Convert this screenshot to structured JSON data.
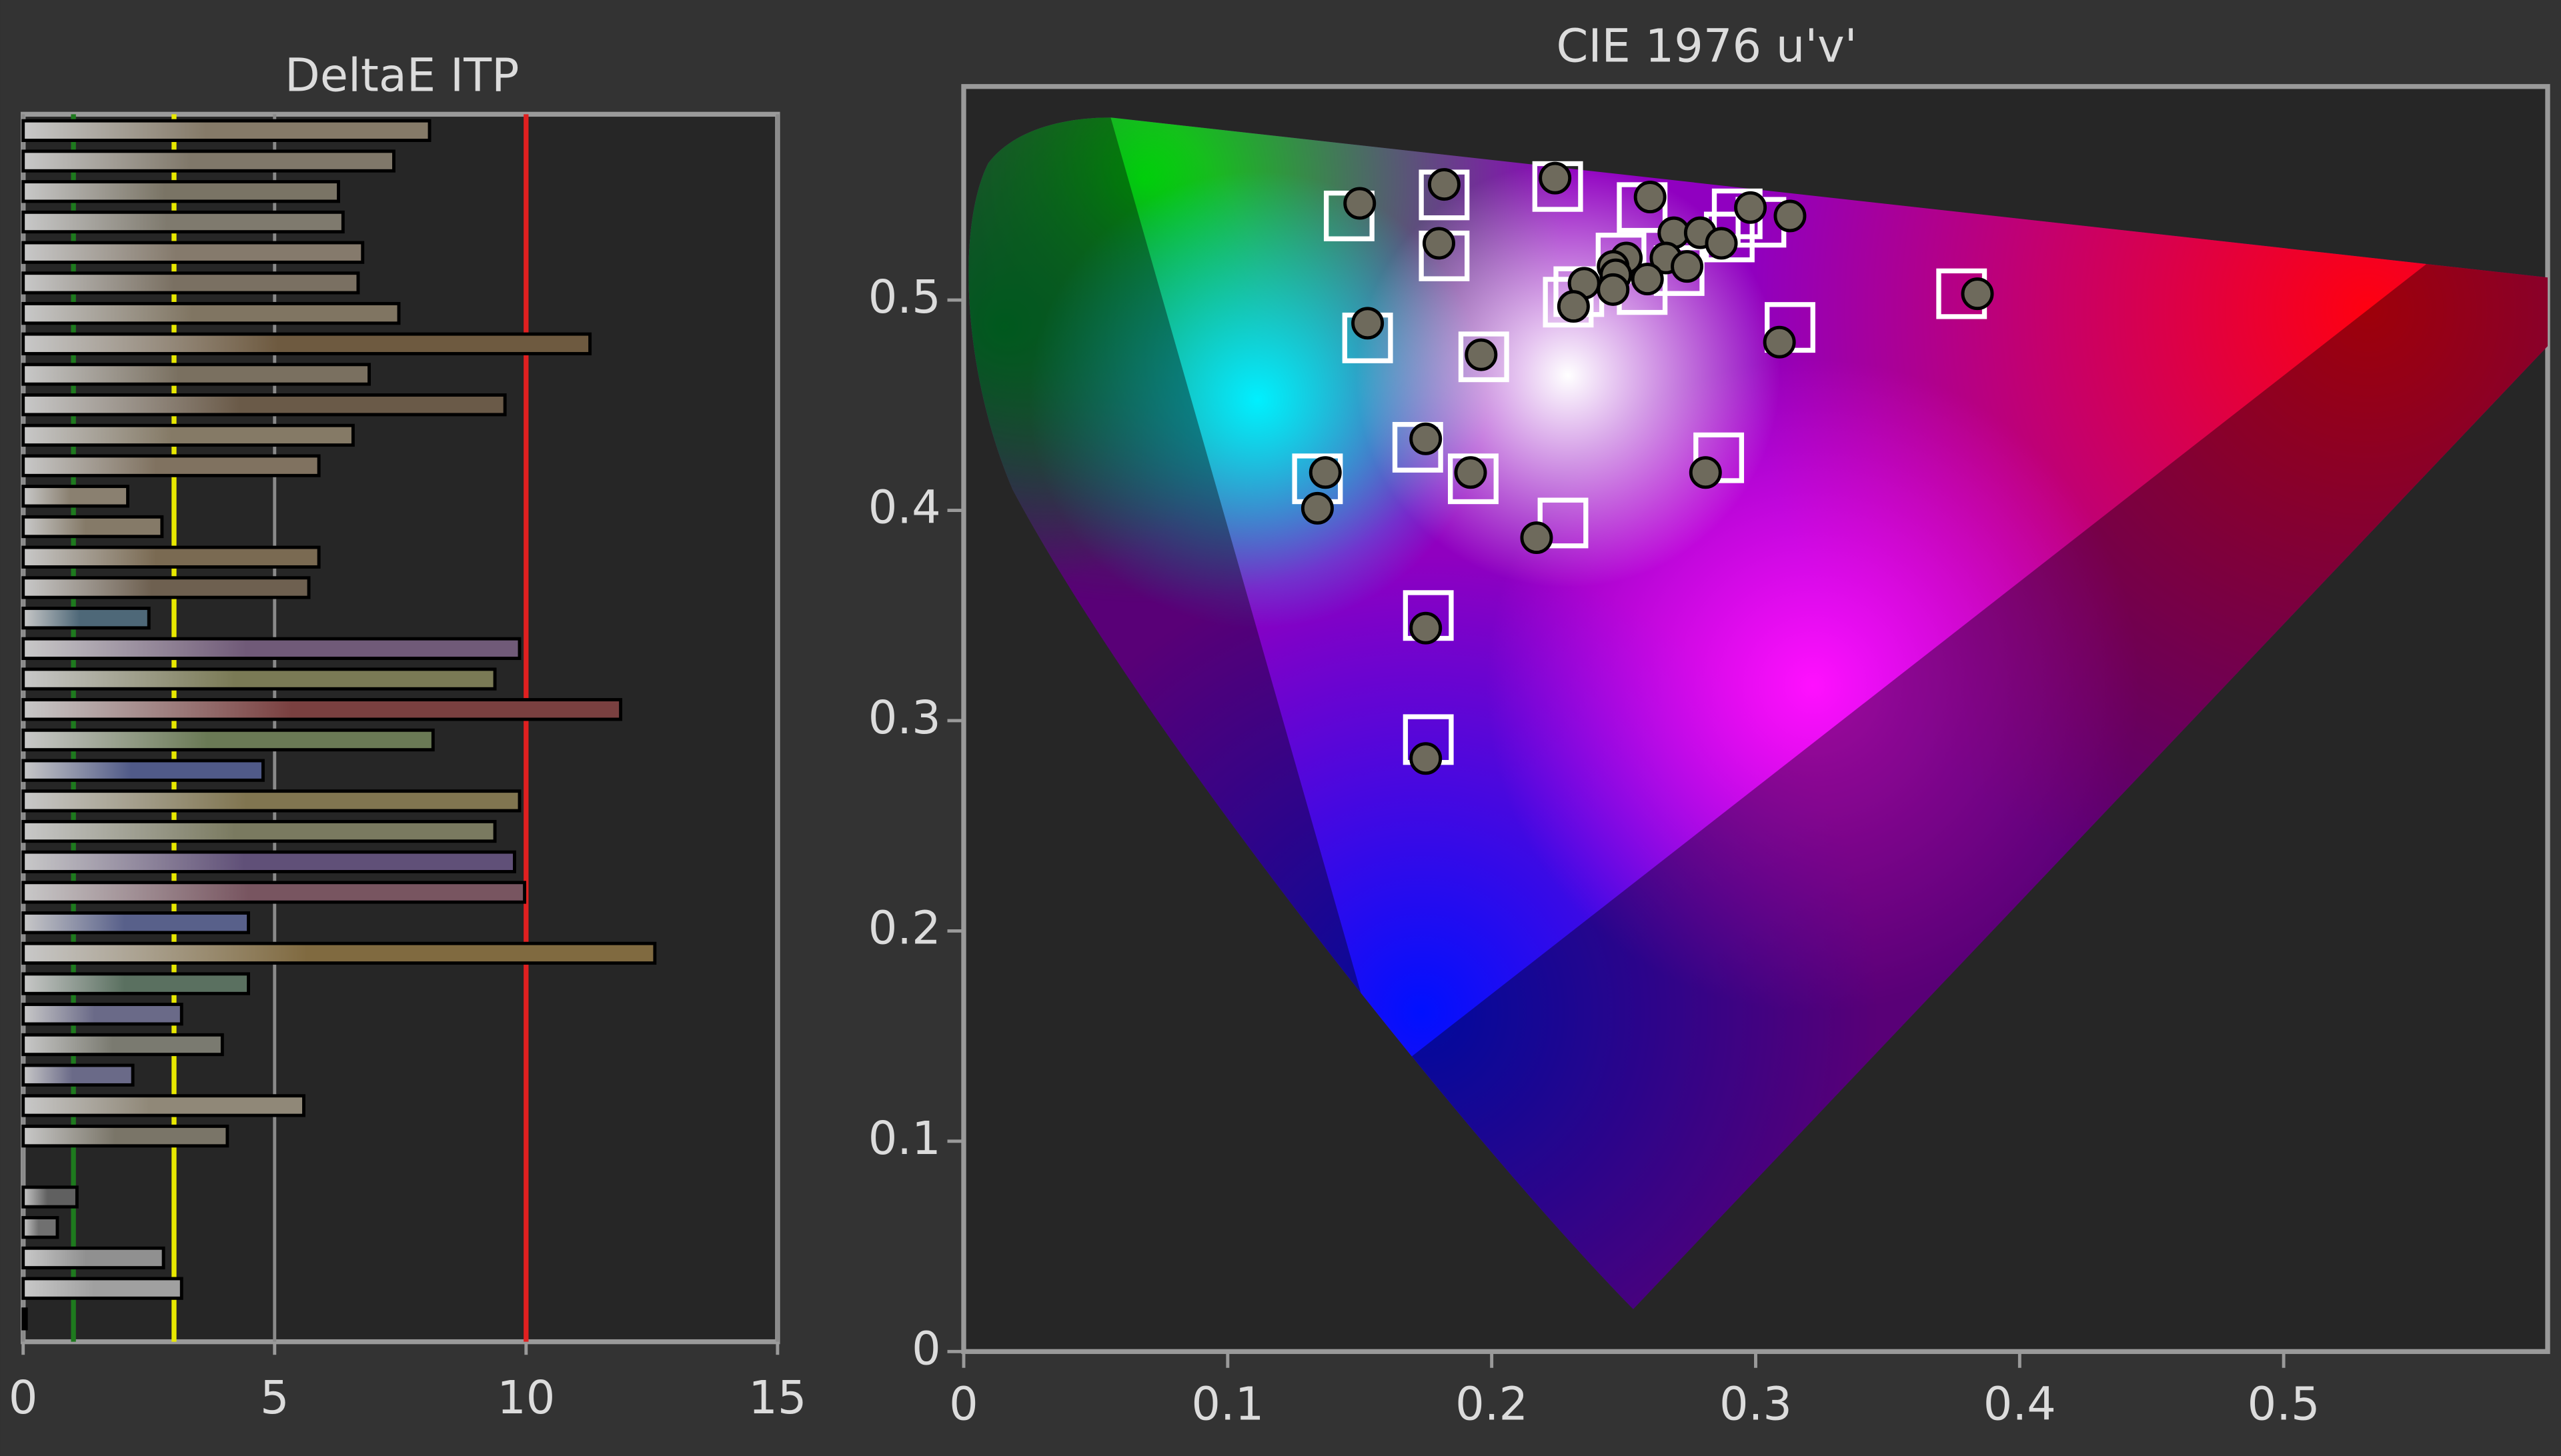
{
  "chart_data": [
    {
      "type": "barh",
      "title": "DeltaE ITP",
      "values": [
        8.08,
        7.37,
        6.27,
        6.36,
        6.75,
        6.66,
        7.47,
        11.27,
        6.88,
        9.58,
        6.56,
        5.88,
        2.08,
        2.76,
        5.88,
        5.68,
        2.5,
        9.87,
        9.38,
        11.88,
        8.15,
        4.77,
        9.87,
        9.38,
        9.77,
        9.97,
        4.48,
        12.56,
        4.48,
        3.15,
        3.96,
        2.18,
        5.58,
        4.06,
        0,
        1.07,
        0.68,
        2.79,
        3.15,
        0.06
      ],
      "colors": [
        "#857a68",
        "#80786a",
        "#7a7465",
        "#7f7a6e",
        "#857a6c",
        "#7a7062",
        "#807562",
        "#6e5a40",
        "#7a7060",
        "#6a5a48",
        "#857a66",
        "#807260",
        "#8a8070",
        "#857a68",
        "#7a6a52",
        "#6e6050",
        "#4e6878",
        "#705a78",
        "#7a7a55",
        "#7a4040",
        "#6a7a55",
        "#505a88",
        "#807550",
        "#7a7a60",
        "#605078",
        "#785560",
        "#58608a",
        "#806a40",
        "#5a7060",
        "#6a6a88",
        "#7a7a70",
        "#6a6a88",
        "#908878",
        "#7a7568",
        "#808080",
        "#606060",
        "#707070",
        "#909090",
        "#a0a0a0",
        "#b0b0b0"
      ],
      "xlim": [
        0,
        15
      ],
      "xticks": [
        0,
        5,
        10,
        15
      ],
      "grid": true,
      "reference_lines": [
        {
          "value": 1,
          "color": "#1e7a1e"
        },
        {
          "value": 3,
          "color": "#e8e800"
        },
        {
          "value": 10,
          "color": "#e02020"
        }
      ]
    },
    {
      "type": "scatter",
      "title": "CIE 1976 u'v'",
      "xlim": [
        0,
        0.6
      ],
      "ylim": [
        0,
        0.6
      ],
      "xticks": [
        0,
        0.1,
        0.2,
        0.3,
        0.4,
        0.5
      ],
      "yticks": [
        0,
        0.1,
        0.2,
        0.3,
        0.4,
        0.5
      ],
      "series": [
        {
          "marker": "square",
          "color": "#ffffff",
          "x": [
            0.146,
            0.182,
            0.182,
            0.225,
            0.257,
            0.293,
            0.302,
            0.29,
            0.249,
            0.271,
            0.257,
            0.233,
            0.229,
            0.378,
            0.313,
            0.153,
            0.197,
            0.172,
            0.193,
            0.286,
            0.134,
            0.227,
            0.176,
            0.176
          ],
          "values": [
            0.54,
            0.55,
            0.521,
            0.554,
            0.544,
            0.541,
            0.537,
            0.53,
            0.52,
            0.514,
            0.505,
            0.504,
            0.499,
            0.503,
            0.487,
            0.482,
            0.473,
            0.43,
            0.415,
            0.425,
            0.415,
            0.394,
            0.35,
            0.291
          ]
        },
        {
          "marker": "circle",
          "color": "#6e6a5c",
          "x": [
            0.15,
            0.182,
            0.18,
            0.224,
            0.26,
            0.298,
            0.313,
            0.269,
            0.279,
            0.287,
            0.251,
            0.246,
            0.266,
            0.274,
            0.259,
            0.247,
            0.235,
            0.246,
            0.231,
            0.384,
            0.309,
            0.153,
            0.196,
            0.175,
            0.192,
            0.281,
            0.137,
            0.134,
            0.217,
            0.175,
            0.175
          ],
          "values": [
            0.546,
            0.555,
            0.527,
            0.558,
            0.549,
            0.544,
            0.54,
            0.532,
            0.532,
            0.527,
            0.52,
            0.516,
            0.52,
            0.516,
            0.51,
            0.512,
            0.508,
            0.505,
            0.497,
            0.503,
            0.48,
            0.489,
            0.474,
            0.434,
            0.418,
            0.418,
            0.418,
            0.401,
            0.387,
            0.344,
            0.282
          ]
        }
      ]
    }
  ]
}
